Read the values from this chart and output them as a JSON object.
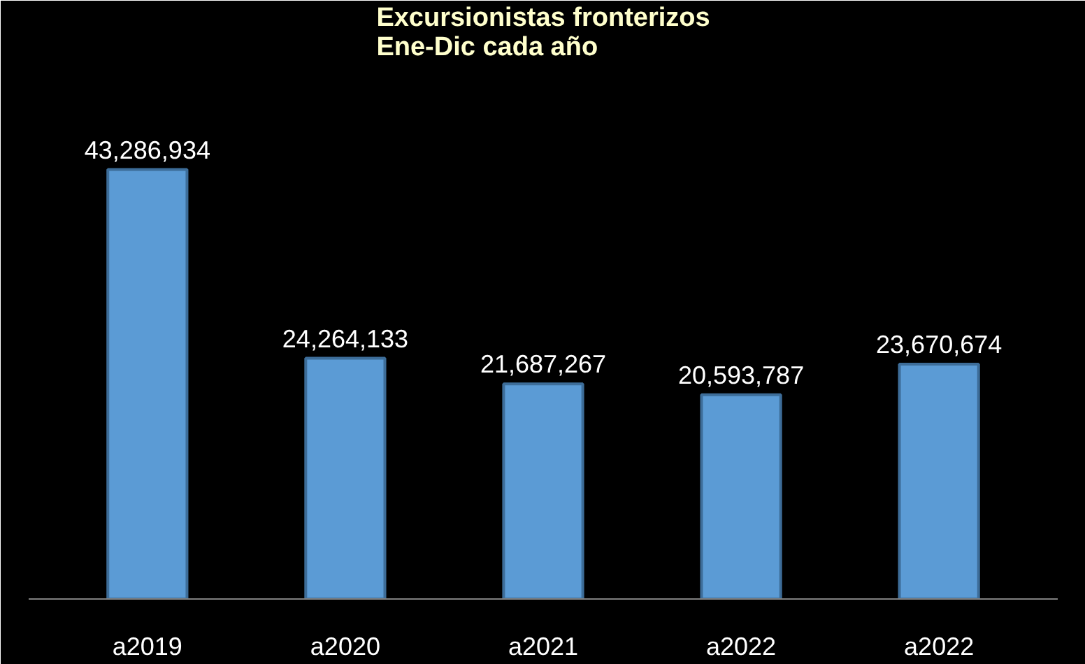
{
  "chart_data": {
    "type": "bar",
    "title": "Excursionistas fronterizos\nEne-Dic cada año",
    "categories": [
      "a2019",
      "a2020",
      "a2021",
      "a2022",
      "a2022"
    ],
    "values": [
      43286934,
      24264133,
      21687267,
      20593787,
      23670674
    ],
    "value_labels": [
      "43,286,934",
      "24,264,133",
      "21,687,267",
      "20,593,787",
      "23,670,674"
    ],
    "color": "#5b9bd5"
  }
}
